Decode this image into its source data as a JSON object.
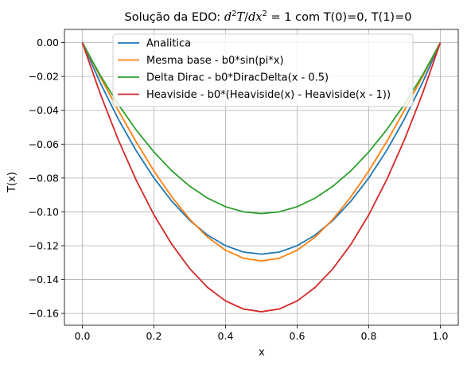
{
  "chart_data": {
    "type": "line",
    "title": "Solução da EDO: ",
    "title_math": {
      "d": "d",
      "T": "T",
      "x": "x",
      "exp": "2",
      "slash": "/",
      "eq_rhs": "= 1"
    },
    "title_suffix": " com T(0)=0, T(1)=0",
    "xlabel": "x",
    "ylabel": "T(x)",
    "xlim": [
      -0.05,
      1.05
    ],
    "ylim": [
      -0.167,
      0.0078
    ],
    "xticks": [
      0.0,
      0.2,
      0.4,
      0.6,
      0.8,
      1.0
    ],
    "xtick_labels": [
      "0.0",
      "0.2",
      "0.4",
      "0.6",
      "0.8",
      "1.0"
    ],
    "yticks": [
      0.0,
      -0.02,
      -0.04,
      -0.06,
      -0.08,
      -0.1,
      -0.12,
      -0.14,
      -0.16
    ],
    "ytick_labels": [
      "0.00",
      "−0.02",
      "−0.04",
      "−0.06",
      "−0.08",
      "−0.10",
      "−0.12",
      "−0.14",
      "−0.16"
    ],
    "grid": true,
    "legend_position": "top-center",
    "x": [
      0.0,
      0.05,
      0.1,
      0.15,
      0.2,
      0.25,
      0.3,
      0.35,
      0.4,
      0.45,
      0.5,
      0.55,
      0.6,
      0.65,
      0.7,
      0.75,
      0.8,
      0.85,
      0.9,
      0.95,
      1.0
    ],
    "series": [
      {
        "name": "Analitica",
        "color": "#1f77b4",
        "values": [
          0.0,
          -0.02375,
          -0.045,
          -0.06375,
          -0.08,
          -0.09375,
          -0.105,
          -0.11375,
          -0.12,
          -0.12375,
          -0.125,
          -0.12375,
          -0.12,
          -0.11375,
          -0.105,
          -0.09375,
          -0.08,
          -0.06375,
          -0.045,
          -0.02375,
          0.0
        ]
      },
      {
        "name": "Mesma base - b0*sin(pi*x)",
        "color": "#ff7f0e",
        "values": [
          0.0,
          -0.02018,
          -0.03987,
          -0.05857,
          -0.07583,
          -0.09122,
          -0.10437,
          -0.11494,
          -0.12268,
          -0.12741,
          -0.129,
          -0.12741,
          -0.12268,
          -0.11494,
          -0.10437,
          -0.09122,
          -0.07583,
          -0.05857,
          -0.03987,
          -0.02018,
          0.0
        ]
      },
      {
        "name": "Delta Dirac - b0*DiracDelta(x - 0.5)",
        "color": "#2ca02c",
        "values": [
          0.0,
          -0.01928,
          -0.03636,
          -0.05151,
          -0.06464,
          -0.07575,
          -0.08484,
          -0.09191,
          -0.09696,
          -0.09999,
          -0.101,
          -0.09999,
          -0.09696,
          -0.09191,
          -0.08484,
          -0.07575,
          -0.06464,
          -0.05151,
          -0.03636,
          -0.01928,
          0.0
        ]
      },
      {
        "name": "Heaviside - b0*(Heaviside(x) - Heaviside(x - 1))",
        "color": "#d62728",
        "values": [
          0.0,
          -0.03021,
          -0.05724,
          -0.08109,
          -0.10176,
          -0.11925,
          -0.13356,
          -0.14469,
          -0.15264,
          -0.15741,
          -0.159,
          -0.15741,
          -0.15264,
          -0.14469,
          -0.13356,
          -0.11925,
          -0.10176,
          -0.08109,
          -0.05724,
          -0.03021,
          0.0
        ]
      }
    ]
  }
}
